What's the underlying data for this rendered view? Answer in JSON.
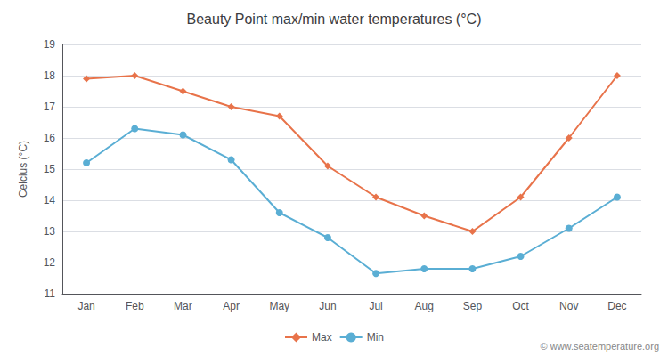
{
  "chart_data": {
    "type": "line",
    "title": "Beauty Point max/min water temperatures (°C)",
    "ylabel": "Celcius (°C)",
    "categories": [
      "Jan",
      "Feb",
      "Mar",
      "Apr",
      "May",
      "Jun",
      "Jul",
      "Aug",
      "Sep",
      "Oct",
      "Nov",
      "Dec"
    ],
    "series": [
      {
        "name": "Max",
        "color": "#e8734a",
        "marker": "diamond",
        "line_style": "solid",
        "values": [
          17.9,
          18.0,
          17.5,
          17.0,
          16.7,
          15.1,
          14.1,
          13.5,
          13.0,
          14.1,
          16.0,
          18.0
        ]
      },
      {
        "name": "Min",
        "color": "#5aaed4",
        "marker": "circle",
        "line_style": "solid",
        "values": [
          15.2,
          16.3,
          16.1,
          15.3,
          13.6,
          12.8,
          11.65,
          11.8,
          11.8,
          12.2,
          13.1,
          14.1
        ]
      }
    ],
    "ylim": [
      11,
      19
    ],
    "yticks": [
      11,
      12,
      13,
      14,
      15,
      16,
      17,
      18,
      19
    ],
    "grid": true,
    "legend": "bottom",
    "annotations": [
      "© www.seatemperature.org"
    ]
  }
}
